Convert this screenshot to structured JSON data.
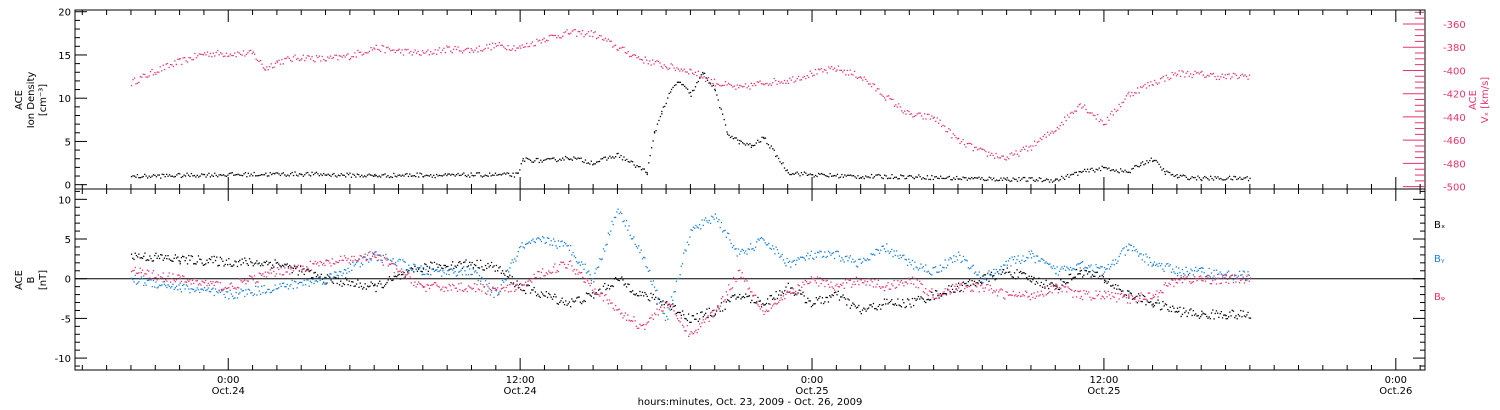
{
  "chart_data": [
    {
      "type": "scatter",
      "left_ylabel_lines": [
        "ACE",
        "Ion Density",
        "[cm⁻³]"
      ],
      "right_ylabel_lines": [
        "ACE",
        "Vₓ [km/s]"
      ],
      "left_ylim": [
        -0.5,
        20.2
      ],
      "left_yticks": [
        0,
        5,
        10,
        15,
        20
      ],
      "left_ytick_labels": [
        "0",
        "5",
        "10",
        "15",
        "20"
      ],
      "right_ylim": [
        -502,
        -348
      ],
      "right_yticks": [
        -500,
        -480,
        -460,
        -440,
        -420,
        -400,
        -380,
        -360
      ],
      "right_ytick_labels": [
        "-500",
        "-480",
        "-460",
        "-440",
        "-420",
        "-400",
        "-380",
        "-360"
      ],
      "colors": {
        "density": "#000000",
        "velocity": "#e8336a"
      },
      "series": [
        {
          "key": "density",
          "axis": "left",
          "x": [
            -4,
            -1,
            3,
            6,
            8,
            9,
            10,
            11.9,
            12.1,
            13,
            14,
            15,
            16,
            17.2,
            17.5,
            17.8,
            18.2,
            18.5,
            19,
            19.5,
            20,
            20.5,
            21,
            21.5,
            22,
            23,
            24,
            26,
            28,
            30,
            32,
            34,
            35,
            36,
            37,
            37.5,
            38,
            38.5,
            39,
            40,
            42
          ],
          "y": [
            1,
            1.2,
            1.3,
            1.1,
            1.2,
            1.1,
            1.2,
            1.2,
            3.0,
            2.8,
            3.2,
            2.6,
            3.5,
            1.5,
            6,
            8.5,
            11,
            12,
            10.5,
            13,
            11,
            6,
            5,
            4.5,
            5.5,
            1.5,
            1.2,
            1,
            1,
            0.8,
            0.7,
            0.6,
            1.5,
            2,
            1.5,
            2.5,
            3,
            1.5,
            1,
            0.8,
            0.8
          ]
        },
        {
          "key": "velocity",
          "axis": "right",
          "x": [
            -4,
            -3,
            -2,
            -1,
            0,
            1,
            1.5,
            2,
            3,
            4,
            5,
            6,
            7,
            8,
            9,
            10,
            11,
            12,
            13,
            14,
            15,
            16,
            17,
            18,
            19,
            20,
            21,
            22,
            23,
            24,
            25,
            26,
            27,
            28,
            29,
            30,
            31,
            32,
            33,
            34,
            35,
            36,
            37,
            38,
            39,
            40,
            41,
            42
          ],
          "y": [
            -410,
            -400,
            -392,
            -385,
            -385,
            -385,
            -398,
            -392,
            -388,
            -390,
            -387,
            -380,
            -383,
            -385,
            -381,
            -382,
            -378,
            -380,
            -372,
            -367,
            -368,
            -380,
            -390,
            -396,
            -400,
            -410,
            -415,
            -410,
            -408,
            -402,
            -398,
            -405,
            -422,
            -438,
            -440,
            -460,
            -470,
            -475,
            -465,
            -450,
            -428,
            -445,
            -420,
            -410,
            -402,
            -403,
            -405,
            -404
          ]
        }
      ]
    },
    {
      "type": "scatter",
      "left_ylabel_lines": [
        "ACE",
        "B",
        "[nT]"
      ],
      "ylim": [
        -11.5,
        11.3
      ],
      "yticks": [
        -10,
        -5,
        0,
        5,
        10
      ],
      "ytick_labels": [
        "-10",
        "-5",
        "0",
        "5",
        "10"
      ],
      "legend": [
        "Bₓ",
        "Bᵧ",
        "Bᵩ"
      ],
      "legend_colors": [
        "#000000",
        "#1a7fd8",
        "#e8336a"
      ],
      "series": [
        {
          "key": "Bx",
          "x": [
            -4,
            -2,
            0,
            2,
            4,
            6,
            8,
            10,
            11,
            12,
            13,
            14,
            15,
            16,
            17,
            18,
            19,
            20,
            21,
            22,
            23,
            24,
            25,
            26,
            27,
            28,
            29,
            30,
            31,
            32,
            33,
            34,
            35,
            36,
            37,
            38,
            39,
            40,
            41,
            42
          ],
          "y": [
            3,
            2.5,
            2.2,
            2,
            0,
            -1,
            1.5,
            2,
            1.5,
            -1,
            -2,
            -3,
            -2,
            0,
            -2,
            -3,
            -5,
            -4,
            -2,
            -3,
            -1,
            -3,
            -2,
            -4,
            -3,
            -3,
            -2,
            -1,
            0,
            1,
            0,
            -1,
            1,
            0,
            -2,
            -3,
            -4,
            -4.5,
            -4.4,
            -4.6
          ]
        },
        {
          "key": "By",
          "x": [
            -4,
            -2,
            0,
            2,
            4,
            6,
            8,
            10,
            11,
            12,
            13,
            14,
            15,
            16,
            17,
            18,
            19,
            20,
            21,
            22,
            23,
            24,
            25,
            26,
            27,
            28,
            29,
            30,
            31,
            32,
            33,
            34,
            35,
            36,
            37,
            38,
            39,
            40,
            41,
            42
          ],
          "y": [
            0,
            -1,
            -2,
            -1,
            0,
            3,
            1,
            1,
            -2,
            4,
            5,
            4,
            0,
            9,
            3,
            -5,
            6,
            8,
            3,
            5,
            2,
            3,
            3,
            2,
            4,
            2,
            1,
            3,
            0,
            2,
            3,
            1,
            2,
            1,
            4,
            2,
            1,
            1,
            0.5,
            0.5
          ]
        },
        {
          "key": "Bz",
          "x": [
            -4,
            -2,
            0,
            2,
            4,
            6,
            8,
            10,
            11,
            12,
            13,
            14,
            15,
            16,
            17,
            18,
            19,
            20,
            21,
            22,
            23,
            24,
            25,
            26,
            27,
            28,
            29,
            30,
            31,
            32,
            33,
            34,
            35,
            36,
            37,
            38,
            39,
            40,
            41,
            42
          ],
          "y": [
            1,
            0,
            -1,
            1,
            2,
            3,
            -1,
            -1,
            -1.5,
            -1,
            1,
            2,
            -1,
            -4,
            -6,
            -3,
            -7,
            -4,
            1,
            -4,
            -2,
            0,
            -1,
            0,
            -1,
            0,
            -2,
            -1,
            -1,
            -2,
            -2,
            -1,
            -2,
            -2,
            -2.5,
            -2,
            0,
            0,
            0,
            0
          ]
        }
      ]
    }
  ],
  "x_axis": {
    "xlim": [
      -6.3,
      49.2
    ],
    "ticks": [
      0,
      12,
      24,
      36,
      48
    ],
    "tick_labels_time": [
      "0:00",
      "12:00",
      "0:00",
      "12:00",
      "0:00"
    ],
    "tick_labels_date": [
      "Oct.24",
      "Oct.24",
      "Oct.25",
      "Oct.25",
      "Oct.26"
    ],
    "label": "hours:minutes, Oct. 23, 2009 - Oct. 26, 2009"
  }
}
